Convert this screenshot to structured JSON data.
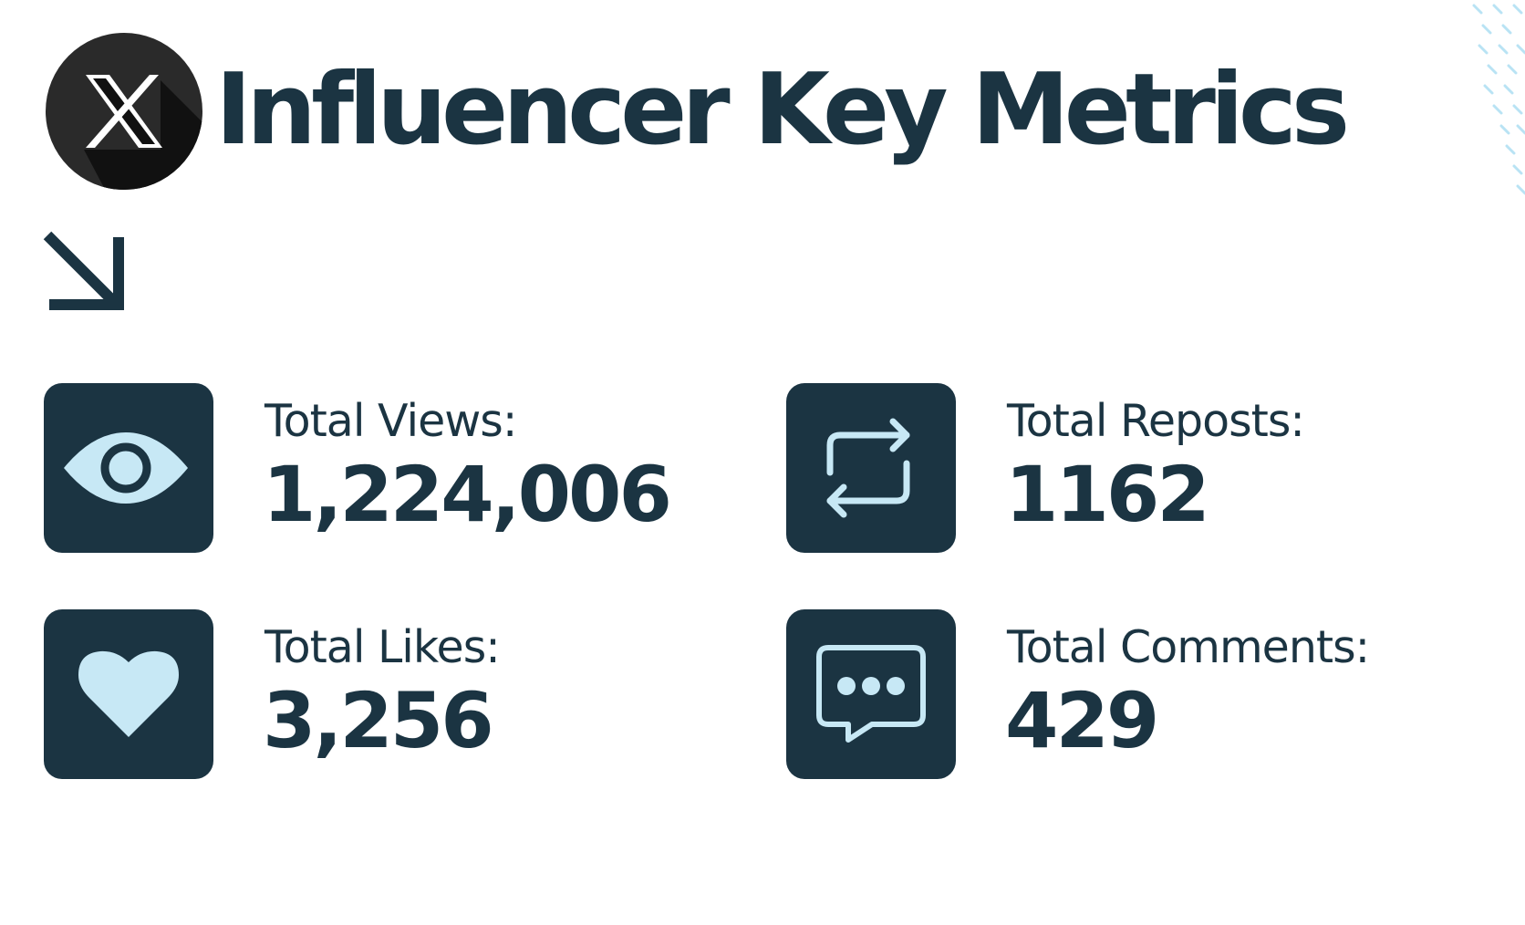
{
  "header": {
    "title": "Influencer Key Metrics",
    "logo_icon": "x-logo-icon",
    "arrow_icon": "arrow-down-right-icon"
  },
  "colors": {
    "primary": "#1b3442",
    "icon_accent": "#c7e8f5",
    "background": "#ffffff",
    "decoration": "#b9e3f4"
  },
  "metrics": [
    {
      "label": "Total Views:",
      "value": "1,224,006",
      "icon": "eye-icon"
    },
    {
      "label": "Total Reposts:",
      "value": "1162",
      "icon": "repost-icon"
    },
    {
      "label": "Total Likes:",
      "value": "3,256",
      "icon": "heart-icon"
    },
    {
      "label": "Total Comments:",
      "value": "429",
      "icon": "comment-icon"
    }
  ]
}
